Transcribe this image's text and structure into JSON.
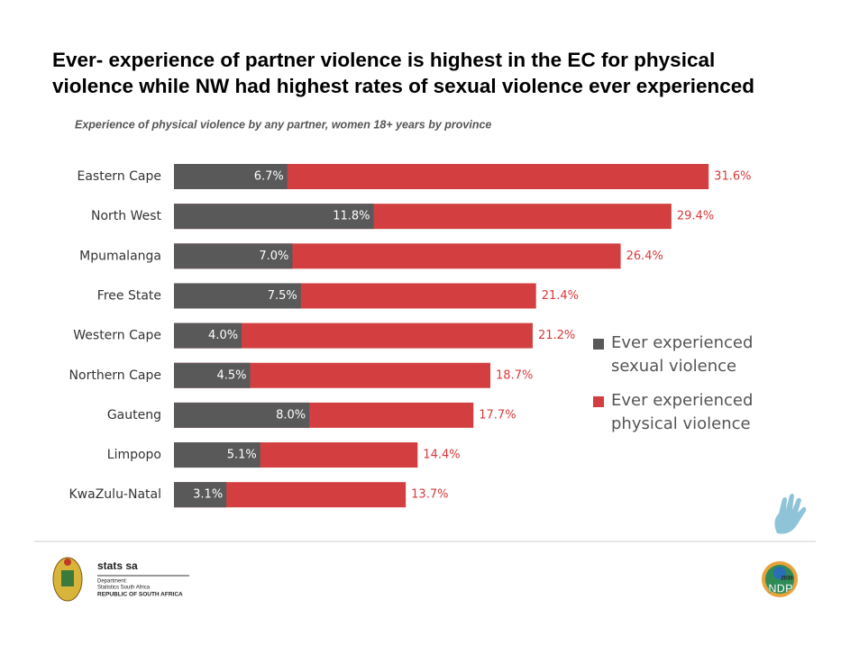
{
  "chart_data": {
    "type": "overlap-bar",
    "title": [
      "Ever- experience of partner violence is highest in the EC for physical",
      "violence while NW had highest rates of sexual violence ever experienced"
    ],
    "subtitle": "Experience of physical violence by any partner, women 18+ years by province",
    "categories": [
      "Eastern Cape",
      "North West",
      "Mpumalanga",
      "Free State",
      "Western Cape",
      "Northern Cape",
      "Gauteng",
      "Limpopo",
      "KwaZulu-Natal"
    ],
    "series": [
      {
        "name": "Ever experienced physical violence",
        "color": "#d33f40",
        "values": [
          31.6,
          29.4,
          26.4,
          21.4,
          21.2,
          18.7,
          17.7,
          14.4,
          13.7
        ],
        "value_labels": [
          "31.6%",
          "29.4%",
          "26.4%",
          "21.4%",
          "21.2%",
          "18.7%",
          "17.7%",
          "14.4%",
          "13.7%"
        ]
      },
      {
        "name": "Ever experienced sexual violence",
        "color": "#595959",
        "values": [
          6.7,
          11.8,
          7.0,
          7.5,
          4.0,
          4.5,
          8.0,
          5.1,
          3.1
        ],
        "value_labels": [
          "6.7%",
          "11.8%",
          "7.0%",
          "7.5%",
          "4.0%",
          "4.5%",
          "8.0%",
          "5.1%",
          "3.1%"
        ]
      }
    ],
    "legend_order": [
      1,
      0
    ],
    "xlim": [
      0,
      35
    ]
  },
  "footer": {
    "org": "stats sa",
    "dept": "Department:",
    "name": "Statistics South Africa",
    "country": "REPUBLIC OF SOUTH AFRICA",
    "ndp": "NDP",
    "year": "2030"
  }
}
